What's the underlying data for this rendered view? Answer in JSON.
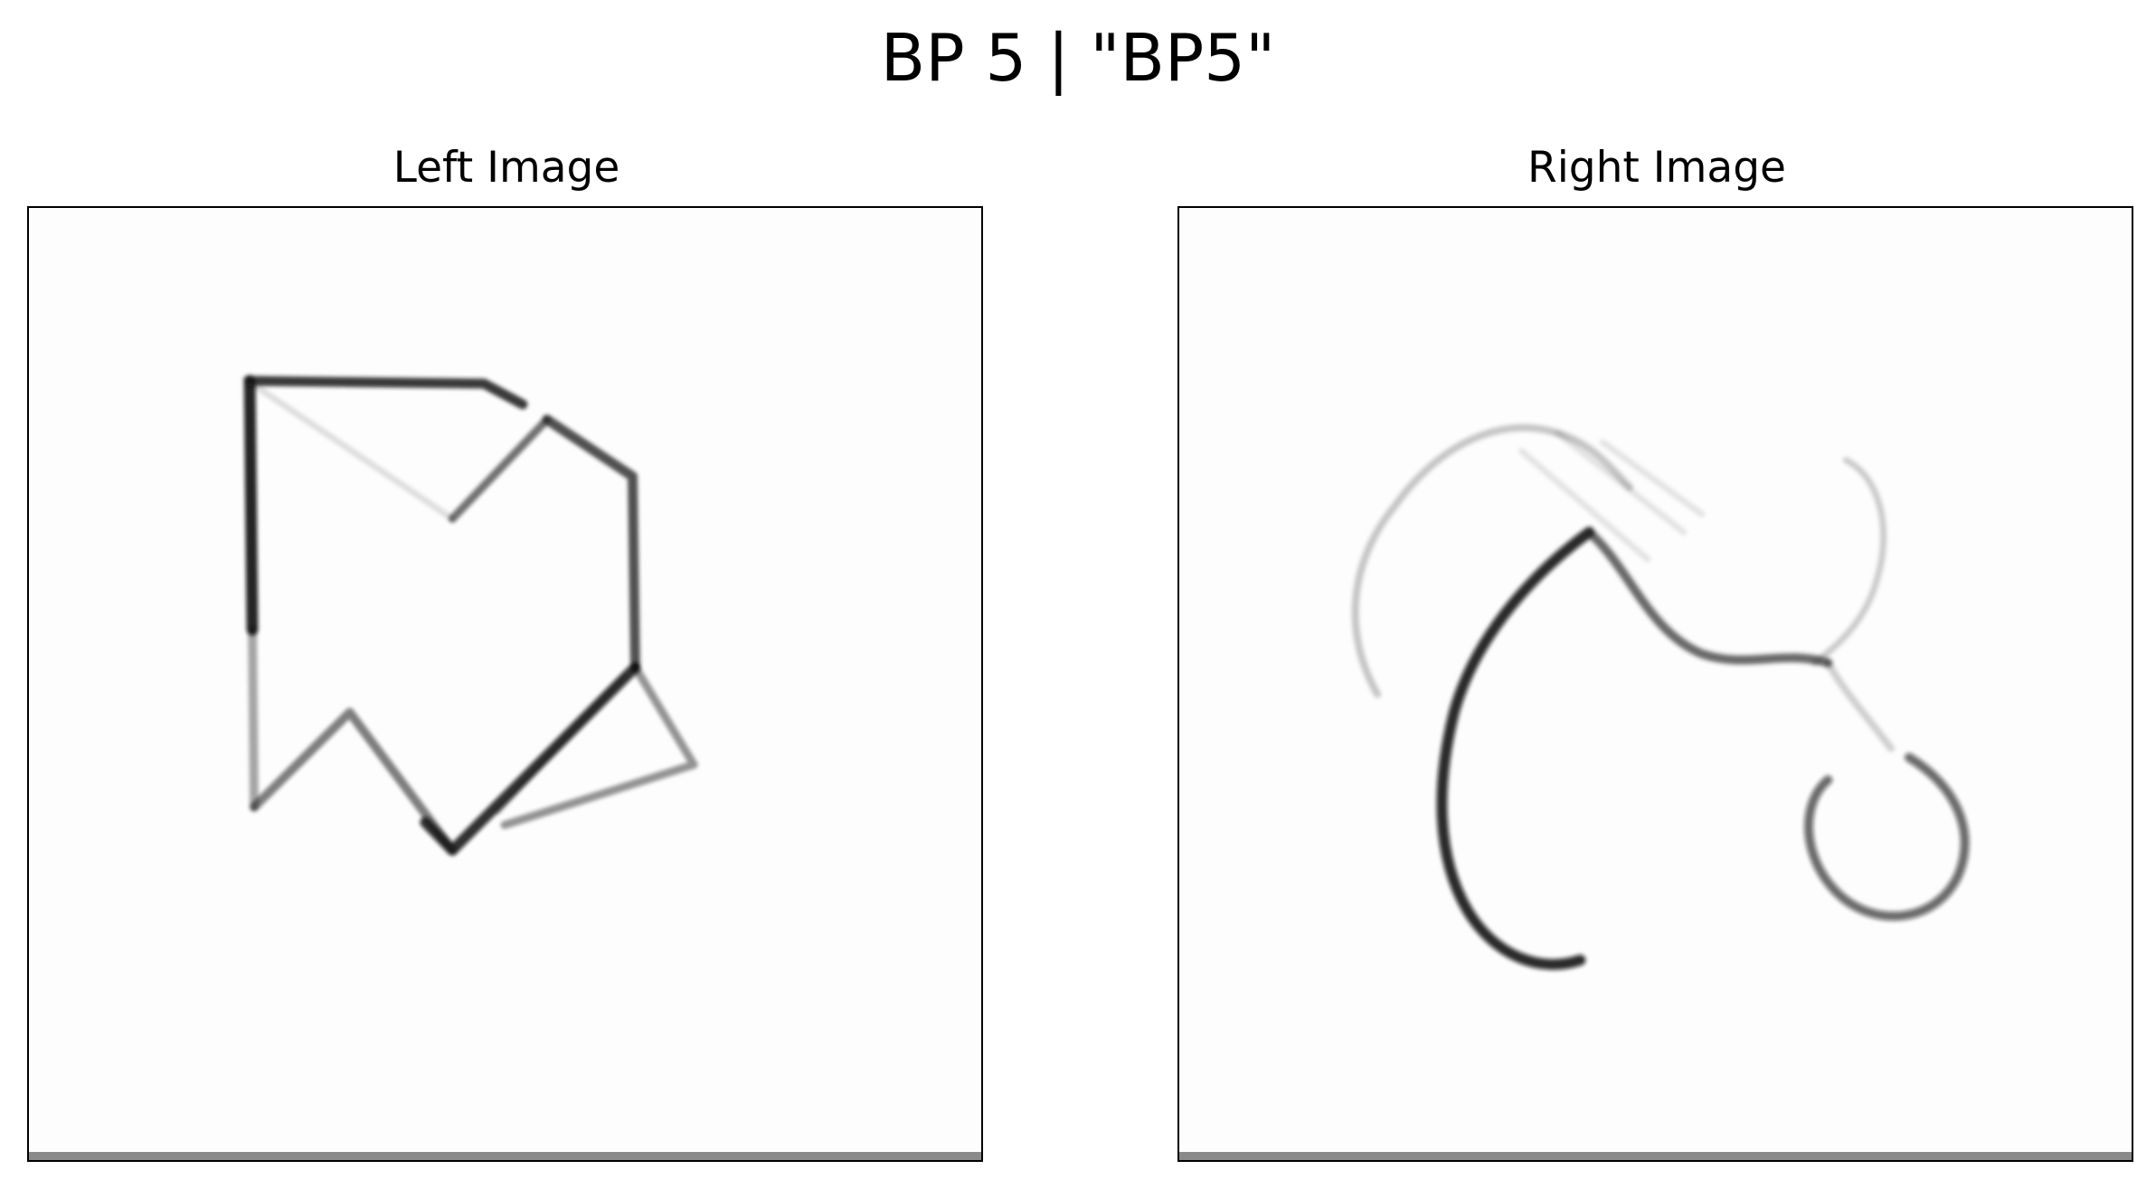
{
  "figure": {
    "title": "BP 5 | \"BP5\""
  },
  "panels": {
    "left": {
      "title": "Left Image"
    },
    "right": {
      "title": "Right Image"
    }
  }
}
